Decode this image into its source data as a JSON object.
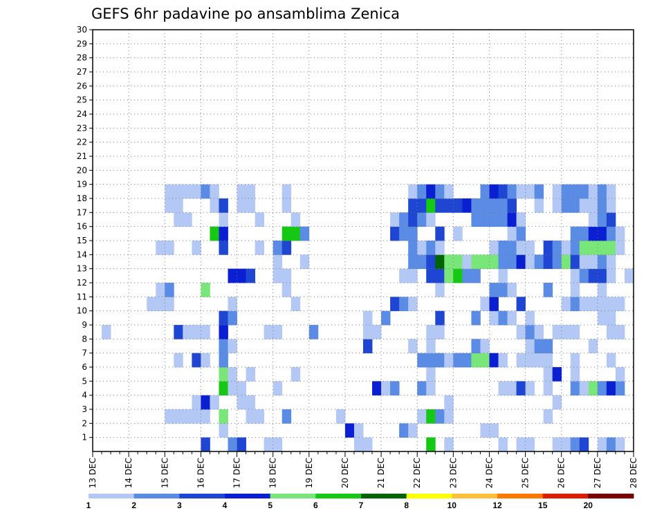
{
  "chart_data": {
    "type": "heatmap",
    "title": "GEFS 6hr padavine po ansamblima Zenica",
    "xlabel": "",
    "ylabel": "",
    "x_tick_labels": [
      "13 DEC",
      "14 DEC",
      "15 DEC",
      "16 DEC",
      "17 DEC",
      "18 DEC",
      "19 DEC",
      "20 DEC",
      "21 DEC",
      "22 DEC",
      "23 DEC",
      "24 DEC",
      "25 DEC",
      "26 DEC",
      "27 DEC",
      "28 DEC"
    ],
    "xlim": [
      "13 DEC 00Z",
      "28 DEC 00Z"
    ],
    "time_step_hours": 6,
    "y_tick_labels": [
      "1",
      "2",
      "3",
      "4",
      "5",
      "6",
      "7",
      "8",
      "9",
      "10",
      "11",
      "12",
      "13",
      "14",
      "15",
      "16",
      "17",
      "18",
      "19",
      "20",
      "21",
      "22",
      "23",
      "24",
      "25",
      "26",
      "27",
      "28",
      "29",
      "30"
    ],
    "ylim": [
      0,
      30
    ],
    "grid": true,
    "levels": [
      1,
      2,
      3,
      4,
      5,
      6,
      7,
      8,
      10,
      12,
      15,
      20
    ],
    "colorbar": {
      "labels": [
        "1",
        "2",
        "3",
        "4",
        "5",
        "6",
        "7",
        "8",
        "10",
        "12",
        "15",
        "20"
      ],
      "colors": [
        "#b4c8f5",
        "#5a8ce6",
        "#1e46d2",
        "#0a1ed2",
        "#78e678",
        "#14c814",
        "#006400",
        "#ffff00",
        "#ffbe3c",
        "#ff7800",
        "#dc1e00",
        "#780000"
      ]
    },
    "cells": [
      [
        0,
        12,
        3
      ],
      [
        0,
        15,
        2
      ],
      [
        0,
        16,
        3
      ],
      [
        0,
        19,
        1
      ],
      [
        0,
        20,
        1
      ],
      [
        0,
        29,
        1
      ],
      [
        0,
        30,
        1
      ],
      [
        0,
        37,
        6
      ],
      [
        0,
        39,
        1
      ],
      [
        0,
        45,
        1
      ],
      [
        0,
        47,
        1
      ],
      [
        0,
        48,
        1
      ],
      [
        0,
        51,
        1
      ],
      [
        0,
        52,
        1
      ],
      [
        0,
        53,
        2
      ],
      [
        0,
        54,
        3
      ],
      [
        0,
        56,
        1
      ],
      [
        0,
        57,
        2
      ],
      [
        0,
        58,
        1
      ],
      [
        1,
        14,
        1
      ],
      [
        1,
        28,
        4
      ],
      [
        1,
        29,
        1
      ],
      [
        1,
        34,
        2
      ],
      [
        1,
        35,
        1
      ],
      [
        1,
        43,
        1
      ],
      [
        1,
        44,
        1
      ],
      [
        2,
        8,
        1
      ],
      [
        2,
        9,
        1
      ],
      [
        2,
        10,
        1
      ],
      [
        2,
        11,
        1
      ],
      [
        2,
        12,
        1
      ],
      [
        2,
        14,
        5
      ],
      [
        2,
        17,
        1
      ],
      [
        2,
        18,
        1
      ],
      [
        2,
        21,
        2
      ],
      [
        2,
        27,
        1
      ],
      [
        2,
        36,
        1
      ],
      [
        2,
        37,
        6
      ],
      [
        2,
        38,
        2
      ],
      [
        2,
        39,
        1
      ],
      [
        2,
        50,
        1
      ],
      [
        3,
        11,
        1
      ],
      [
        3,
        12,
        4
      ],
      [
        3,
        13,
        1
      ],
      [
        3,
        16,
        1
      ],
      [
        3,
        17,
        1
      ],
      [
        3,
        39,
        1
      ],
      [
        3,
        51,
        1
      ],
      [
        4,
        14,
        6
      ],
      [
        4,
        15,
        1
      ],
      [
        4,
        16,
        1
      ],
      [
        4,
        20,
        1
      ],
      [
        4,
        31,
        4
      ],
      [
        4,
        32,
        1
      ],
      [
        4,
        33,
        2
      ],
      [
        4,
        36,
        2
      ],
      [
        4,
        37,
        1
      ],
      [
        4,
        45,
        1
      ],
      [
        4,
        46,
        1
      ],
      [
        4,
        47,
        3
      ],
      [
        4,
        48,
        1
      ],
      [
        4,
        50,
        1
      ],
      [
        4,
        53,
        2
      ],
      [
        4,
        54,
        1
      ],
      [
        4,
        55,
        5
      ],
      [
        4,
        56,
        2
      ],
      [
        4,
        57,
        4
      ],
      [
        4,
        58,
        2
      ],
      [
        5,
        14,
        5
      ],
      [
        5,
        15,
        1
      ],
      [
        5,
        17,
        1
      ],
      [
        5,
        22,
        1
      ],
      [
        5,
        37,
        1
      ],
      [
        5,
        50,
        1
      ],
      [
        5,
        51,
        4
      ],
      [
        5,
        53,
        1
      ],
      [
        5,
        58,
        1
      ],
      [
        6,
        9,
        1
      ],
      [
        6,
        11,
        3
      ],
      [
        6,
        12,
        1
      ],
      [
        6,
        14,
        2
      ],
      [
        6,
        36,
        2
      ],
      [
        6,
        37,
        2
      ],
      [
        6,
        38,
        2
      ],
      [
        6,
        39,
        1
      ],
      [
        6,
        40,
        2
      ],
      [
        6,
        41,
        2
      ],
      [
        6,
        42,
        5
      ],
      [
        6,
        43,
        5
      ],
      [
        6,
        44,
        4
      ],
      [
        6,
        45,
        1
      ],
      [
        6,
        47,
        1
      ],
      [
        6,
        48,
        1
      ],
      [
        6,
        49,
        1
      ],
      [
        6,
        50,
        1
      ],
      [
        6,
        53,
        1
      ],
      [
        6,
        57,
        1
      ],
      [
        7,
        14,
        2
      ],
      [
        7,
        15,
        1
      ],
      [
        7,
        30,
        3
      ],
      [
        7,
        35,
        1
      ],
      [
        7,
        37,
        1
      ],
      [
        7,
        42,
        2
      ],
      [
        7,
        43,
        1
      ],
      [
        7,
        48,
        1
      ],
      [
        7,
        49,
        2
      ],
      [
        7,
        50,
        2
      ],
      [
        7,
        55,
        1
      ],
      [
        8,
        1,
        1
      ],
      [
        8,
        9,
        3
      ],
      [
        8,
        10,
        1
      ],
      [
        8,
        11,
        1
      ],
      [
        8,
        12,
        1
      ],
      [
        8,
        14,
        4
      ],
      [
        8,
        19,
        1
      ],
      [
        8,
        20,
        1
      ],
      [
        8,
        24,
        2
      ],
      [
        8,
        30,
        1
      ],
      [
        8,
        31,
        1
      ],
      [
        8,
        37,
        1
      ],
      [
        8,
        38,
        1
      ],
      [
        8,
        47,
        1
      ],
      [
        8,
        48,
        2
      ],
      [
        8,
        49,
        1
      ],
      [
        8,
        51,
        1
      ],
      [
        8,
        52,
        1
      ],
      [
        8,
        53,
        1
      ],
      [
        8,
        57,
        1
      ],
      [
        8,
        58,
        1
      ],
      [
        9,
        14,
        3
      ],
      [
        9,
        15,
        2
      ],
      [
        9,
        30,
        1
      ],
      [
        9,
        32,
        2
      ],
      [
        9,
        38,
        3
      ],
      [
        9,
        42,
        2
      ],
      [
        9,
        44,
        1
      ],
      [
        9,
        45,
        2
      ],
      [
        9,
        46,
        1
      ],
      [
        9,
        48,
        1
      ],
      [
        9,
        56,
        1
      ],
      [
        9,
        57,
        1
      ],
      [
        10,
        6,
        1
      ],
      [
        10,
        7,
        1
      ],
      [
        10,
        8,
        1
      ],
      [
        10,
        15,
        1
      ],
      [
        10,
        22,
        1
      ],
      [
        10,
        33,
        3
      ],
      [
        10,
        34,
        2
      ],
      [
        10,
        35,
        1
      ],
      [
        10,
        43,
        1
      ],
      [
        10,
        44,
        4
      ],
      [
        10,
        47,
        3
      ],
      [
        10,
        52,
        1
      ],
      [
        10,
        53,
        2
      ],
      [
        10,
        54,
        1
      ],
      [
        10,
        55,
        1
      ],
      [
        10,
        56,
        1
      ],
      [
        10,
        57,
        1
      ],
      [
        10,
        58,
        1
      ],
      [
        11,
        7,
        1
      ],
      [
        11,
        8,
        2
      ],
      [
        11,
        12,
        5
      ],
      [
        11,
        21,
        1
      ],
      [
        11,
        38,
        1
      ],
      [
        11,
        44,
        2
      ],
      [
        11,
        45,
        2
      ],
      [
        11,
        46,
        1
      ],
      [
        11,
        50,
        2
      ],
      [
        11,
        53,
        1
      ],
      [
        11,
        56,
        1
      ],
      [
        12,
        15,
        4
      ],
      [
        12,
        16,
        4
      ],
      [
        12,
        17,
        3
      ],
      [
        12,
        20,
        1
      ],
      [
        12,
        21,
        1
      ],
      [
        12,
        34,
        1
      ],
      [
        12,
        35,
        1
      ],
      [
        12,
        37,
        3
      ],
      [
        12,
        38,
        3
      ],
      [
        12,
        39,
        5
      ],
      [
        12,
        40,
        6
      ],
      [
        12,
        41,
        2
      ],
      [
        12,
        42,
        2
      ],
      [
        12,
        45,
        1
      ],
      [
        12,
        53,
        1
      ],
      [
        12,
        54,
        2
      ],
      [
        12,
        55,
        3
      ],
      [
        12,
        56,
        3
      ],
      [
        12,
        57,
        1
      ],
      [
        12,
        59,
        1
      ],
      [
        13,
        20,
        1
      ],
      [
        13,
        23,
        1
      ],
      [
        13,
        35,
        2
      ],
      [
        13,
        36,
        2
      ],
      [
        13,
        37,
        3
      ],
      [
        13,
        38,
        7
      ],
      [
        13,
        39,
        5
      ],
      [
        13,
        40,
        5
      ],
      [
        13,
        41,
        1
      ],
      [
        13,
        42,
        5
      ],
      [
        13,
        43,
        5
      ],
      [
        13,
        44,
        5
      ],
      [
        13,
        45,
        2
      ],
      [
        13,
        46,
        2
      ],
      [
        13,
        47,
        4
      ],
      [
        13,
        48,
        1
      ],
      [
        13,
        49,
        2
      ],
      [
        13,
        50,
        3
      ],
      [
        13,
        51,
        2
      ],
      [
        13,
        52,
        5
      ],
      [
        13,
        53,
        3
      ],
      [
        13,
        54,
        1
      ],
      [
        13,
        55,
        1
      ],
      [
        13,
        56,
        2
      ],
      [
        13,
        57,
        1
      ],
      [
        14,
        7,
        1
      ],
      [
        14,
        8,
        1
      ],
      [
        14,
        11,
        1
      ],
      [
        14,
        14,
        3
      ],
      [
        14,
        18,
        1
      ],
      [
        14,
        20,
        2
      ],
      [
        14,
        21,
        3
      ],
      [
        14,
        35,
        2
      ],
      [
        14,
        36,
        1
      ],
      [
        14,
        37,
        2
      ],
      [
        14,
        38,
        1
      ],
      [
        14,
        44,
        1
      ],
      [
        14,
        45,
        2
      ],
      [
        14,
        46,
        2
      ],
      [
        14,
        47,
        1
      ],
      [
        14,
        48,
        1
      ],
      [
        14,
        50,
        3
      ],
      [
        14,
        51,
        2
      ],
      [
        14,
        52,
        1
      ],
      [
        14,
        53,
        2
      ],
      [
        14,
        54,
        5
      ],
      [
        14,
        55,
        5
      ],
      [
        14,
        56,
        5
      ],
      [
        14,
        57,
        5
      ],
      [
        14,
        58,
        1
      ],
      [
        15,
        13,
        6
      ],
      [
        15,
        14,
        4
      ],
      [
        15,
        21,
        6
      ],
      [
        15,
        22,
        6
      ],
      [
        15,
        23,
        2
      ],
      [
        15,
        33,
        3
      ],
      [
        15,
        34,
        2
      ],
      [
        15,
        35,
        2
      ],
      [
        15,
        38,
        3
      ],
      [
        15,
        40,
        1
      ],
      [
        15,
        46,
        1
      ],
      [
        15,
        47,
        2
      ],
      [
        15,
        53,
        2
      ],
      [
        15,
        54,
        2
      ],
      [
        15,
        55,
        4
      ],
      [
        15,
        56,
        4
      ],
      [
        15,
        57,
        2
      ],
      [
        15,
        58,
        1
      ],
      [
        16,
        9,
        1
      ],
      [
        16,
        10,
        1
      ],
      [
        16,
        14,
        1
      ],
      [
        16,
        18,
        1
      ],
      [
        16,
        22,
        1
      ],
      [
        16,
        33,
        1
      ],
      [
        16,
        34,
        2
      ],
      [
        16,
        35,
        3
      ],
      [
        16,
        36,
        2
      ],
      [
        16,
        37,
        1
      ],
      [
        16,
        42,
        2
      ],
      [
        16,
        43,
        2
      ],
      [
        16,
        44,
        2
      ],
      [
        16,
        45,
        2
      ],
      [
        16,
        46,
        4
      ],
      [
        16,
        47,
        1
      ],
      [
        16,
        55,
        1
      ],
      [
        16,
        56,
        2
      ],
      [
        16,
        57,
        3
      ],
      [
        17,
        8,
        1
      ],
      [
        17,
        9,
        1
      ],
      [
        17,
        13,
        1
      ],
      [
        17,
        14,
        3
      ],
      [
        17,
        16,
        1
      ],
      [
        17,
        17,
        1
      ],
      [
        17,
        21,
        1
      ],
      [
        17,
        35,
        3
      ],
      [
        17,
        36,
        3
      ],
      [
        17,
        37,
        6
      ],
      [
        17,
        38,
        3
      ],
      [
        17,
        39,
        3
      ],
      [
        17,
        40,
        3
      ],
      [
        17,
        41,
        4
      ],
      [
        17,
        42,
        2
      ],
      [
        17,
        43,
        2
      ],
      [
        17,
        44,
        2
      ],
      [
        17,
        45,
        2
      ],
      [
        17,
        46,
        3
      ],
      [
        17,
        49,
        1
      ],
      [
        17,
        51,
        1
      ],
      [
        17,
        52,
        2
      ],
      [
        17,
        53,
        2
      ],
      [
        17,
        54,
        1
      ],
      [
        17,
        55,
        1
      ],
      [
        17,
        56,
        2
      ],
      [
        17,
        57,
        1
      ],
      [
        18,
        8,
        1
      ],
      [
        18,
        9,
        1
      ],
      [
        18,
        10,
        1
      ],
      [
        18,
        11,
        1
      ],
      [
        18,
        12,
        2
      ],
      [
        18,
        13,
        1
      ],
      [
        18,
        16,
        1
      ],
      [
        18,
        17,
        1
      ],
      [
        18,
        21,
        1
      ],
      [
        18,
        35,
        1
      ],
      [
        18,
        36,
        2
      ],
      [
        18,
        37,
        4
      ],
      [
        18,
        38,
        2
      ],
      [
        18,
        39,
        1
      ],
      [
        18,
        43,
        2
      ],
      [
        18,
        44,
        4
      ],
      [
        18,
        45,
        3
      ],
      [
        18,
        46,
        2
      ],
      [
        18,
        47,
        1
      ],
      [
        18,
        48,
        1
      ],
      [
        18,
        49,
        2
      ],
      [
        18,
        51,
        1
      ],
      [
        18,
        52,
        2
      ],
      [
        18,
        53,
        2
      ],
      [
        18,
        54,
        2
      ],
      [
        18,
        55,
        1
      ],
      [
        18,
        56,
        2
      ],
      [
        18,
        57,
        1
      ]
    ]
  }
}
